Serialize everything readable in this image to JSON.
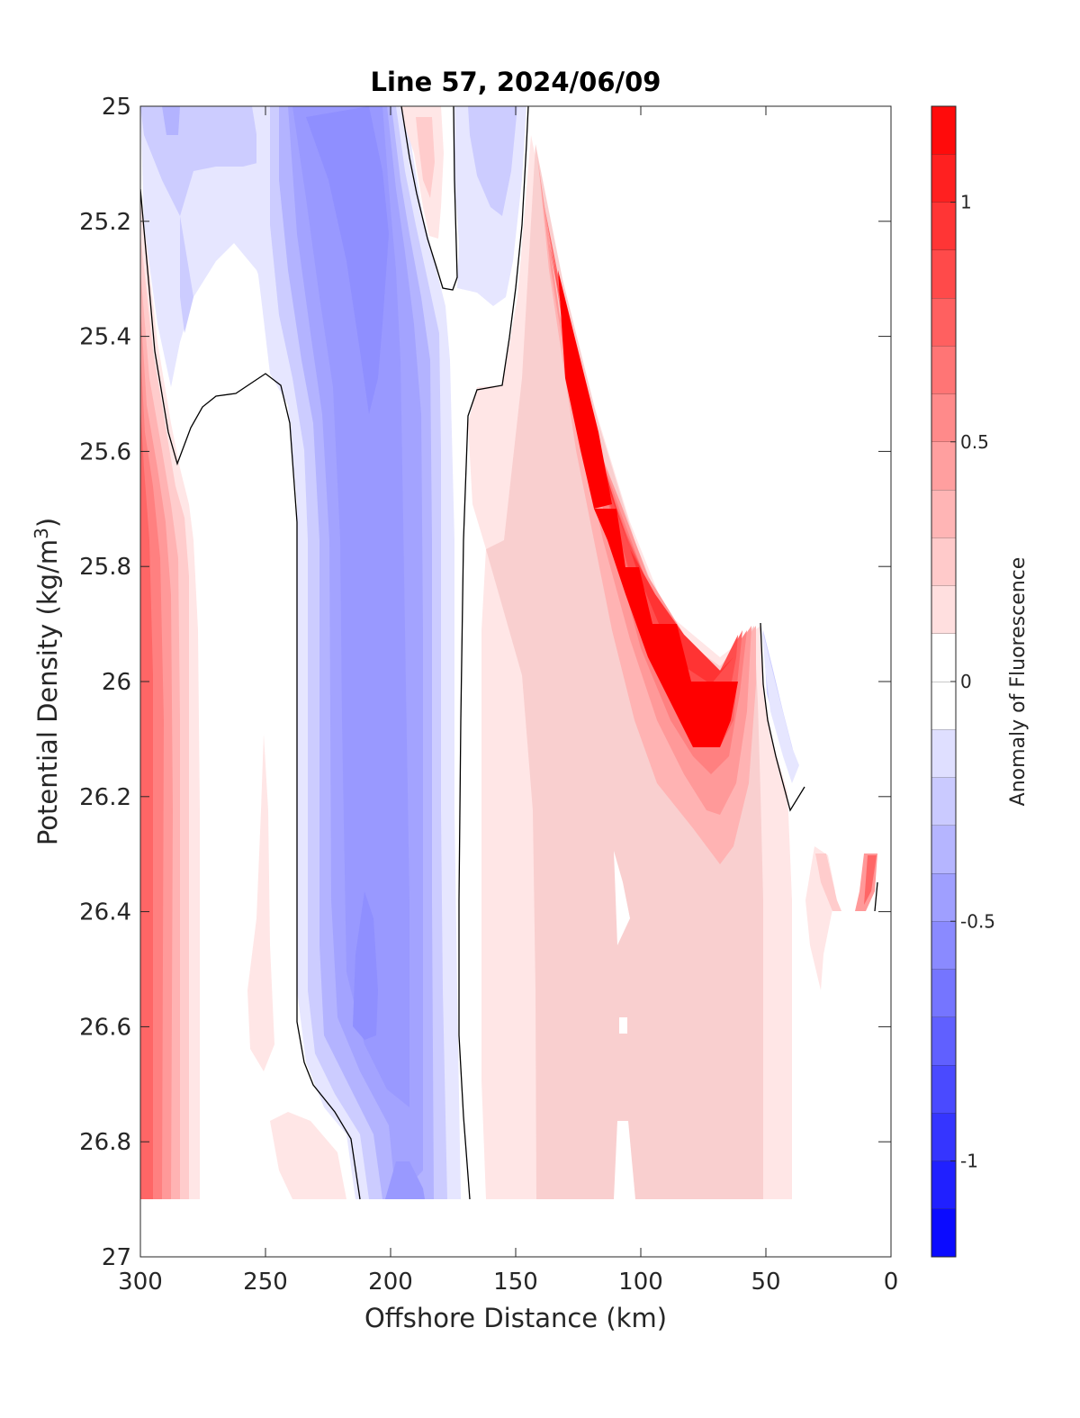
{
  "chart_data": {
    "type": "contour",
    "title": "Line 57, 2024/06/09",
    "xlabel": "Offshore Distance (km)",
    "ylabel": "Potential Density (kg/m³)",
    "ylabel_parts": {
      "main": "Potential Density (kg/m",
      "sup": "3",
      "end": ")"
    },
    "colorbar_label": "Anomaly of Fluorescence",
    "xlim": [
      300,
      0
    ],
    "ylim": [
      27,
      25
    ],
    "x_reversed": true,
    "y_reversed": true,
    "xticks": [
      300,
      250,
      200,
      150,
      100,
      50,
      0
    ],
    "xtick_labels": [
      "300",
      "250",
      "200",
      "150",
      "100",
      "50",
      "0"
    ],
    "yticks": [
      25,
      25.2,
      25.4,
      25.6,
      25.8,
      26,
      26.2,
      26.4,
      26.6,
      26.8,
      27
    ],
    "ytick_labels": [
      "25",
      "25.2",
      "25.4",
      "25.6",
      "25.8",
      "26",
      "26.2",
      "26.4",
      "26.6",
      "26.8",
      "27"
    ],
    "colorbar": {
      "range": [
        -1.2,
        1.2
      ],
      "step": 0.1,
      "ticks": [
        1,
        0.5,
        0,
        -0.5,
        -1
      ],
      "tick_labels": [
        "1",
        "0.5",
        "0",
        "-0.5",
        "-1"
      ],
      "colormap": "blue-white-red",
      "negative_color": "#0000ff",
      "positive_color": "#ff0000"
    },
    "zero_contour_color": "#000000",
    "regions": [
      {
        "name": "offshore-red-edge",
        "sign": "positive",
        "peak": 0.7,
        "x_range": [
          300,
          275
        ],
        "y_range": [
          25.3,
          26.9
        ]
      },
      {
        "name": "upper-left-blue",
        "sign": "negative",
        "peak": -0.2,
        "x_range": [
          300,
          245
        ],
        "y_range": [
          25,
          25.4
        ]
      },
      {
        "name": "central-blue-core",
        "sign": "negative",
        "peak": -0.5,
        "x_range": [
          245,
          175
        ],
        "y_range": [
          25,
          26.9
        ]
      },
      {
        "name": "upper-blue-patch",
        "sign": "negative",
        "peak": -0.2,
        "x_range": [
          175,
          150
        ],
        "y_range": [
          25,
          25.35
        ]
      },
      {
        "name": "upper-pink-patch",
        "sign": "positive",
        "peak": 0.15,
        "x_range": [
          195,
          180
        ],
        "y_range": [
          25,
          25.22
        ]
      },
      {
        "name": "small-pink-250",
        "sign": "positive",
        "peak": 0.1,
        "x_range": [
          258,
          243
        ],
        "y_range": [
          26.1,
          26.7
        ]
      },
      {
        "name": "bottom-pink-230",
        "sign": "positive",
        "peak": 0.1,
        "x_range": [
          245,
          215
        ],
        "y_range": [
          26.75,
          26.9
        ]
      },
      {
        "name": "nearshore-red-wedge",
        "sign": "positive",
        "peak": 1.1,
        "x_range": [
          165,
          40
        ],
        "y_range": [
          25.05,
          26.9
        ]
      },
      {
        "name": "small-blue-near-45",
        "sign": "negative",
        "peak": -0.25,
        "x_range": [
          50,
          38
        ],
        "y_range": [
          25.9,
          26.15
        ]
      },
      {
        "name": "nearshore-pink-bits",
        "sign": "positive",
        "peak": 0.3,
        "x_range": [
          35,
          5
        ],
        "y_range": [
          26.3,
          26.55
        ]
      }
    ]
  }
}
